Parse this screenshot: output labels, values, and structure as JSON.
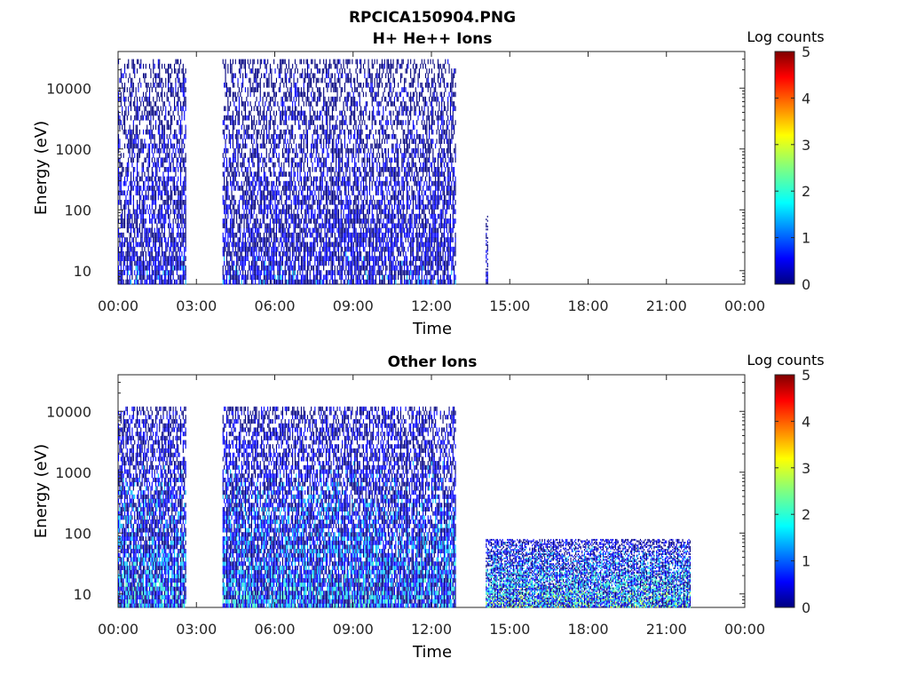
{
  "figure": {
    "title_line1": "RPCICA150904.PNG",
    "colorbar_ticks": [
      "0",
      "1",
      "2",
      "3",
      "4",
      "5"
    ],
    "colormap": [
      "#00007f",
      "#0000ff",
      "#00bfff",
      "#40ffbf",
      "#bfff40",
      "#ffbf00",
      "#ff4000",
      "#7f0000"
    ]
  },
  "chart_data": [
    {
      "type": "heatmap",
      "title": "H+ He++ Ions",
      "xlabel": "Time",
      "ylabel": "Energy (eV)",
      "colorbar_label": "Log counts",
      "colorbar_range": [
        0,
        5
      ],
      "x_range_hours": [
        0,
        24
      ],
      "x_ticks": [
        "00:00",
        "03:00",
        "06:00",
        "09:00",
        "12:00",
        "15:00",
        "18:00",
        "21:00",
        "00:00"
      ],
      "y_scale": "log",
      "y_range_eV": [
        6,
        40000
      ],
      "y_ticks": [
        "10",
        "100",
        "1000",
        "10000"
      ],
      "segments": [
        {
          "start": "00:00",
          "end": "02:35",
          "energy_min_eV": 6,
          "energy_max_eV": 30000,
          "log_counts_range": [
            0,
            1.2
          ]
        },
        {
          "start": "04:00",
          "end": "12:55",
          "energy_min_eV": 6,
          "energy_max_eV": 30000,
          "log_counts_range": [
            0,
            1.2
          ]
        },
        {
          "start": "14:05",
          "end": "14:10",
          "energy_min_eV": 6,
          "energy_max_eV": 80,
          "log_counts_range": [
            0,
            1
          ]
        }
      ]
    },
    {
      "type": "heatmap",
      "title": "Other Ions",
      "xlabel": "Time",
      "ylabel": "Energy (eV)",
      "colorbar_label": "Log counts",
      "colorbar_range": [
        0,
        5
      ],
      "x_range_hours": [
        0,
        24
      ],
      "x_ticks": [
        "00:00",
        "03:00",
        "06:00",
        "09:00",
        "12:00",
        "15:00",
        "18:00",
        "21:00",
        "00:00"
      ],
      "y_scale": "log",
      "y_range_eV": [
        6,
        40000
      ],
      "y_ticks": [
        "10",
        "100",
        "1000",
        "10000"
      ],
      "segments": [
        {
          "start": "00:00",
          "end": "02:35",
          "energy_min_eV": 6,
          "energy_max_eV": 12000,
          "log_counts_range": [
            0,
            2.2
          ]
        },
        {
          "start": "04:00",
          "end": "12:55",
          "energy_min_eV": 6,
          "energy_max_eV": 12000,
          "log_counts_range": [
            0,
            2.2
          ]
        },
        {
          "start": "14:05",
          "end": "21:55",
          "energy_min_eV": 6,
          "energy_max_eV": 80,
          "log_counts_range": [
            0,
            3.3
          ]
        }
      ]
    }
  ]
}
